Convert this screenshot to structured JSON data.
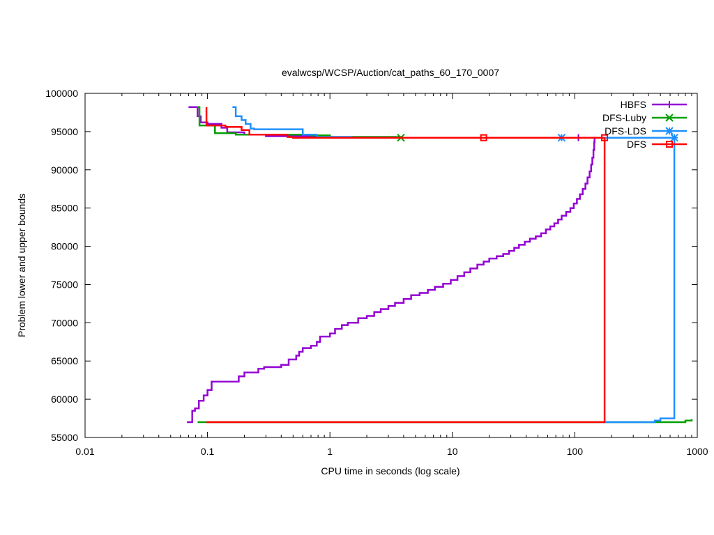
{
  "chart_data": {
    "type": "line",
    "title": "evalwcsp/WCSP/Auction/cat_paths_60_170_0007",
    "xlabel": "CPU time in seconds (log scale)",
    "ylabel": "Problem lower and upper bounds",
    "xscale": "log",
    "xlim": [
      0.01,
      1000
    ],
    "ylim": [
      55000,
      100000
    ],
    "xticks": [
      {
        "value": 0.01,
        "label": "0.01"
      },
      {
        "value": 0.1,
        "label": "0.1"
      },
      {
        "value": 1,
        "label": "1"
      },
      {
        "value": 10,
        "label": "10"
      },
      {
        "value": 100,
        "label": "100"
      },
      {
        "value": 1000,
        "label": "1000"
      }
    ],
    "yticks": [
      {
        "value": 55000,
        "label": "55000"
      },
      {
        "value": 60000,
        "label": "60000"
      },
      {
        "value": 65000,
        "label": "65000"
      },
      {
        "value": 70000,
        "label": "70000"
      },
      {
        "value": 75000,
        "label": "75000"
      },
      {
        "value": 80000,
        "label": "80000"
      },
      {
        "value": 85000,
        "label": "85000"
      },
      {
        "value": 90000,
        "label": "90000"
      },
      {
        "value": 95000,
        "label": "95000"
      },
      {
        "value": 100000,
        "label": "100000"
      }
    ],
    "grid": false,
    "legend_position": "top-right",
    "series": [
      {
        "name": "HBFS",
        "color": "#9400d3",
        "marker": "plus",
        "upper": [
          [
            0.07,
            98200
          ],
          [
            0.083,
            98200
          ],
          [
            0.083,
            97000
          ],
          [
            0.088,
            97000
          ],
          [
            0.088,
            96200
          ],
          [
            0.1,
            96200
          ],
          [
            0.1,
            96000
          ],
          [
            0.13,
            96000
          ],
          [
            0.13,
            95500
          ],
          [
            0.145,
            95500
          ],
          [
            0.145,
            94900
          ],
          [
            0.2,
            94900
          ],
          [
            0.2,
            94600
          ],
          [
            0.3,
            94600
          ],
          [
            0.3,
            94400
          ],
          [
            0.7,
            94400
          ],
          [
            0.7,
            94300
          ],
          [
            3.5,
            94300
          ],
          [
            3.5,
            94200
          ],
          [
            145,
            94200
          ]
        ],
        "lower": [
          [
            0.068,
            57000
          ],
          [
            0.075,
            57000
          ],
          [
            0.075,
            58500
          ],
          [
            0.079,
            58500
          ],
          [
            0.079,
            58800
          ],
          [
            0.085,
            58800
          ],
          [
            0.085,
            59800
          ],
          [
            0.093,
            59800
          ],
          [
            0.093,
            60500
          ],
          [
            0.1,
            60500
          ],
          [
            0.1,
            61200
          ],
          [
            0.108,
            61200
          ],
          [
            0.108,
            62300
          ],
          [
            0.18,
            62300
          ],
          [
            0.18,
            63000
          ],
          [
            0.2,
            63000
          ],
          [
            0.2,
            63500
          ],
          [
            0.26,
            63500
          ],
          [
            0.26,
            64000
          ],
          [
            0.29,
            64000
          ],
          [
            0.29,
            64200
          ],
          [
            0.4,
            64200
          ],
          [
            0.4,
            64500
          ],
          [
            0.46,
            64500
          ],
          [
            0.46,
            65200
          ],
          [
            0.53,
            65200
          ],
          [
            0.53,
            65700
          ],
          [
            0.56,
            65700
          ],
          [
            0.56,
            66200
          ],
          [
            0.6,
            66200
          ],
          [
            0.6,
            66700
          ],
          [
            0.7,
            66700
          ],
          [
            0.7,
            67000
          ],
          [
            0.78,
            67000
          ],
          [
            0.78,
            67500
          ],
          [
            0.83,
            67500
          ],
          [
            0.83,
            68200
          ],
          [
            1.0,
            68200
          ],
          [
            1.0,
            68600
          ],
          [
            1.1,
            68600
          ],
          [
            1.1,
            69200
          ],
          [
            1.25,
            69200
          ],
          [
            1.25,
            69700
          ],
          [
            1.4,
            69700
          ],
          [
            1.4,
            70000
          ],
          [
            1.7,
            70000
          ],
          [
            1.7,
            70600
          ],
          [
            2.0,
            70600
          ],
          [
            2.0,
            70900
          ],
          [
            2.3,
            70900
          ],
          [
            2.3,
            71400
          ],
          [
            2.6,
            71400
          ],
          [
            2.6,
            71800
          ],
          [
            3.0,
            71800
          ],
          [
            3.0,
            72200
          ],
          [
            3.4,
            72200
          ],
          [
            3.4,
            72600
          ],
          [
            4.0,
            72600
          ],
          [
            4.0,
            73100
          ],
          [
            4.6,
            73100
          ],
          [
            4.6,
            73600
          ],
          [
            5.4,
            73600
          ],
          [
            5.4,
            73900
          ],
          [
            6.3,
            73900
          ],
          [
            6.3,
            74300
          ],
          [
            7.2,
            74300
          ],
          [
            7.2,
            74700
          ],
          [
            8.4,
            74700
          ],
          [
            8.4,
            75100
          ],
          [
            9.7,
            75100
          ],
          [
            9.7,
            75600
          ],
          [
            11,
            75600
          ],
          [
            11,
            76100
          ],
          [
            12.5,
            76100
          ],
          [
            12.5,
            76600
          ],
          [
            14,
            76600
          ],
          [
            14,
            77100
          ],
          [
            16,
            77100
          ],
          [
            16,
            77600
          ],
          [
            18,
            77600
          ],
          [
            18,
            78000
          ],
          [
            20,
            78000
          ],
          [
            20,
            78400
          ],
          [
            23,
            78400
          ],
          [
            23,
            78700
          ],
          [
            26,
            78700
          ],
          [
            26,
            79000
          ],
          [
            29,
            79000
          ],
          [
            29,
            79400
          ],
          [
            32,
            79400
          ],
          [
            32,
            79800
          ],
          [
            35,
            79800
          ],
          [
            35,
            80200
          ],
          [
            39,
            80200
          ],
          [
            39,
            80600
          ],
          [
            43,
            80600
          ],
          [
            43,
            81000
          ],
          [
            48,
            81000
          ],
          [
            48,
            81300
          ],
          [
            53,
            81300
          ],
          [
            53,
            81700
          ],
          [
            58,
            81700
          ],
          [
            58,
            82200
          ],
          [
            63,
            82200
          ],
          [
            63,
            82600
          ],
          [
            68,
            82600
          ],
          [
            68,
            83000
          ],
          [
            73,
            83000
          ],
          [
            73,
            83500
          ],
          [
            78,
            83500
          ],
          [
            78,
            84000
          ],
          [
            85,
            84000
          ],
          [
            85,
            84500
          ],
          [
            92,
            84500
          ],
          [
            92,
            85000
          ],
          [
            98,
            85000
          ],
          [
            98,
            85600
          ],
          [
            104,
            85600
          ],
          [
            104,
            86200
          ],
          [
            110,
            86200
          ],
          [
            110,
            86800
          ],
          [
            116,
            86800
          ],
          [
            116,
            87500
          ],
          [
            122,
            87500
          ],
          [
            122,
            88200
          ],
          [
            127,
            88200
          ],
          [
            127,
            89000
          ],
          [
            132,
            89000
          ],
          [
            132,
            89800
          ],
          [
            136,
            89800
          ],
          [
            136,
            90700
          ],
          [
            139,
            90700
          ],
          [
            139,
            91600
          ],
          [
            142,
            91600
          ],
          [
            142,
            92600
          ],
          [
            144,
            92600
          ],
          [
            144,
            93600
          ],
          [
            145,
            93600
          ],
          [
            145,
            94200
          ]
        ],
        "marker_points": [
          [
            107,
            94200
          ]
        ]
      },
      {
        "name": "DFS-Luby",
        "color": "#00a000",
        "marker": "x",
        "upper": [
          [
            0.083,
            98200
          ],
          [
            0.086,
            98200
          ],
          [
            0.086,
            95800
          ],
          [
            0.115,
            95800
          ],
          [
            0.115,
            94800
          ],
          [
            0.17,
            94800
          ],
          [
            0.17,
            94600
          ],
          [
            0.7,
            94600
          ],
          [
            0.7,
            94500
          ],
          [
            1.0,
            94500
          ],
          [
            1.0,
            94300
          ],
          [
            3.8,
            94300
          ],
          [
            3.8,
            94200
          ],
          [
            5,
            94200
          ]
        ],
        "lower": [
          [
            0.083,
            57000
          ],
          [
            560,
            57000
          ],
          [
            560,
            57000
          ],
          [
            800,
            57000
          ],
          [
            800,
            57200
          ],
          [
            900,
            57200
          ],
          [
            900,
            57400
          ]
        ],
        "marker_points": [
          [
            3.8,
            94200
          ]
        ]
      },
      {
        "name": "DFS-LDS",
        "color": "#1e90ff",
        "marker": "star",
        "upper": [
          [
            0.16,
            98200
          ],
          [
            0.17,
            98200
          ],
          [
            0.17,
            97000
          ],
          [
            0.19,
            97000
          ],
          [
            0.19,
            96500
          ],
          [
            0.205,
            96500
          ],
          [
            0.205,
            96000
          ],
          [
            0.225,
            96000
          ],
          [
            0.225,
            95400
          ],
          [
            0.24,
            95400
          ],
          [
            0.24,
            95300
          ],
          [
            0.6,
            95300
          ],
          [
            0.6,
            94600
          ],
          [
            0.78,
            94600
          ],
          [
            0.78,
            94300
          ],
          [
            1.5,
            94300
          ],
          [
            1.5,
            94200
          ],
          [
            650,
            94200
          ]
        ],
        "lower": [
          [
            170,
            57000
          ],
          [
            450,
            57000
          ],
          [
            450,
            57200
          ],
          [
            500,
            57200
          ],
          [
            500,
            57500
          ],
          [
            650,
            57500
          ],
          [
            650,
            94200
          ]
        ],
        "marker_points": [
          [
            78,
            94200
          ],
          [
            650,
            94200
          ]
        ]
      },
      {
        "name": "DFS",
        "color": "#ff0000",
        "marker": "square",
        "upper": [
          [
            0.098,
            98200
          ],
          [
            0.098,
            95800
          ],
          [
            0.14,
            95800
          ],
          [
            0.14,
            95600
          ],
          [
            0.19,
            95600
          ],
          [
            0.19,
            95200
          ],
          [
            0.22,
            95200
          ],
          [
            0.22,
            94600
          ],
          [
            0.45,
            94600
          ],
          [
            0.45,
            94300
          ],
          [
            0.5,
            94300
          ],
          [
            0.5,
            94200
          ],
          [
            175,
            94200
          ]
        ],
        "lower": [
          [
            0.098,
            57000
          ],
          [
            175,
            57000
          ],
          [
            175,
            94200
          ]
        ],
        "marker_points": [
          [
            18,
            94200
          ],
          [
            175,
            94200
          ]
        ]
      }
    ]
  }
}
